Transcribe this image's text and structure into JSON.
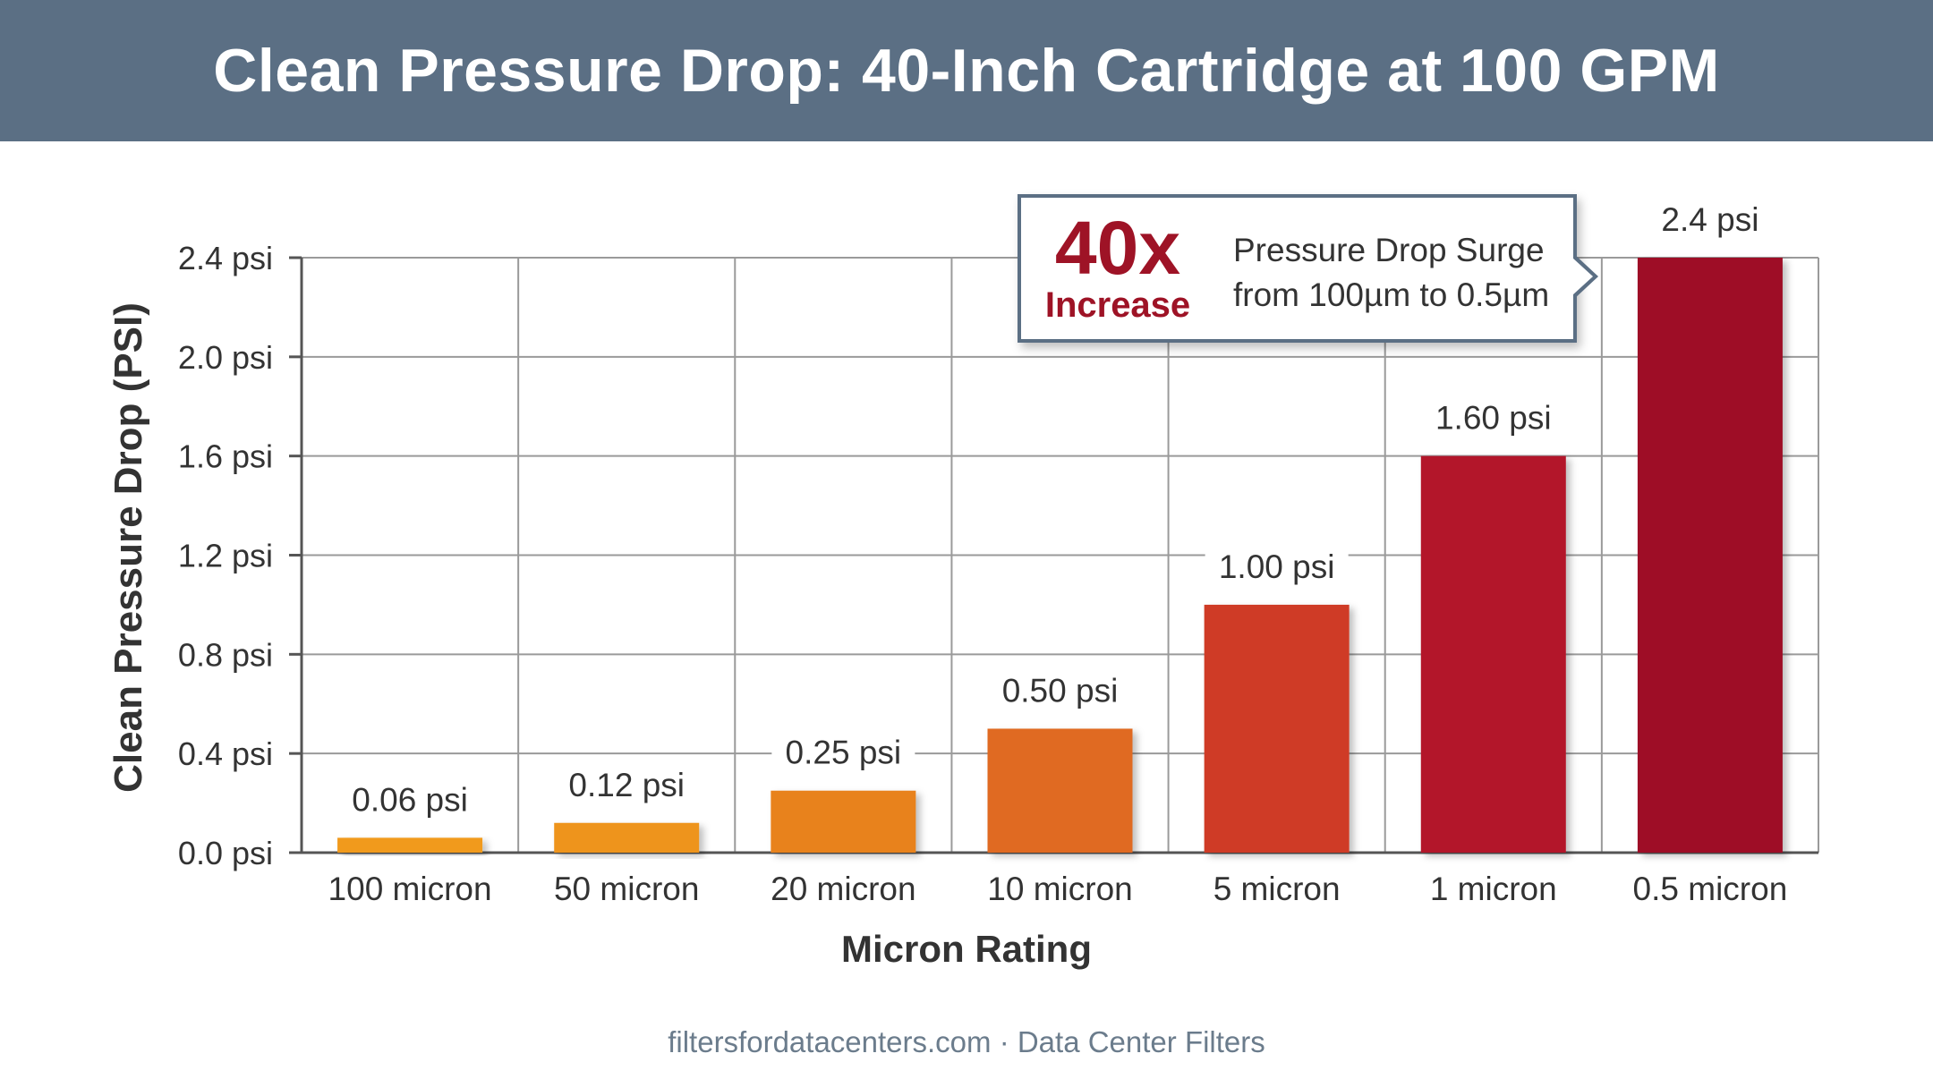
{
  "header": {
    "title": "Clean Pressure Drop: 40-Inch Cartridge at 100 GPM"
  },
  "callout": {
    "headline": "40x",
    "subline": "Increase",
    "desc_line1": "Pressure Drop Surge",
    "desc_line2": "from 100µm to 0.5µm"
  },
  "footer": {
    "text": "filtersfordatacenters.com · Data Center Filters"
  },
  "chart_data": {
    "type": "bar",
    "title": "Clean Pressure Drop: 40-Inch Cartridge at 100 GPM",
    "xlabel": "Micron Rating",
    "ylabel": "Clean Pressure Drop (PSI)",
    "categories": [
      "100 micron",
      "50 micron",
      "20 micron",
      "10 micron",
      "5 micron",
      "1 micron",
      "0.5 micron"
    ],
    "values": [
      0.06,
      0.12,
      0.25,
      0.5,
      1.0,
      1.6,
      2.4
    ],
    "data_labels": [
      "0.06 psi",
      "0.12 psi",
      "0.25 psi",
      "0.50 psi",
      "1.00 psi",
      "1.60 psi",
      "2.4 psi"
    ],
    "y_ticks": [
      0.0,
      0.4,
      0.8,
      1.2,
      1.6,
      2.0,
      2.4
    ],
    "y_tick_labels": [
      "0.0 psi",
      "0.4 psi",
      "0.8 psi",
      "1.2 psi",
      "1.6 psi",
      "2.0 psi",
      "2.4 psi"
    ],
    "ylim": [
      0,
      2.4
    ],
    "grid": true,
    "colors": [
      "#f19a1f",
      "#ee941f",
      "#e8821f",
      "#e06b22",
      "#cf3a26",
      "#b3162a",
      "#9e0f25"
    ]
  }
}
